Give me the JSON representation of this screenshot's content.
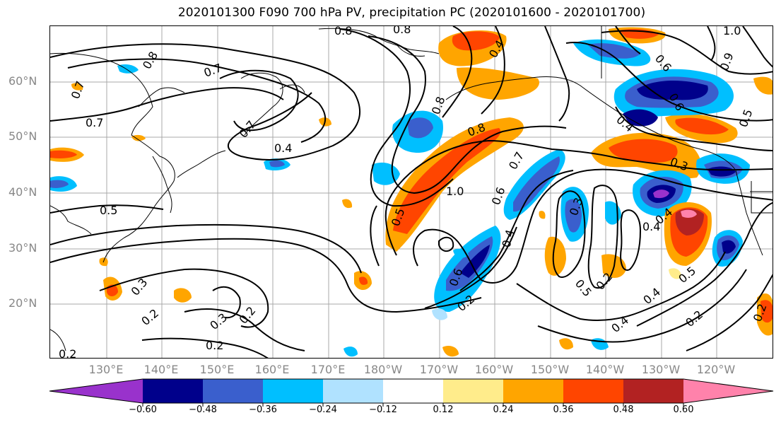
{
  "title": "2020101300 F090 700 hPa PV, precipitation PC (2020101600 - 2020101700)",
  "lat_labels": [
    "60°N",
    "50°N",
    "40°N",
    "30°N",
    "20°N"
  ],
  "lon_labels": [
    "130°E",
    "140°E",
    "150°E",
    "160°E",
    "170°E",
    "180°W",
    "170°W",
    "160°W",
    "150°W",
    "140°W",
    "130°W",
    "120°W"
  ],
  "colorbar": {
    "ticks": [
      "−0.60",
      "−0.48",
      "−0.36",
      "−0.24",
      "−0.12",
      "0.12",
      "0.24",
      "0.36",
      "0.48",
      "0.60"
    ],
    "colors": [
      "#9932cc",
      "#00008b",
      "#3a5fcd",
      "#00bfff",
      "#b0e2ff",
      "#ffffff",
      "#ffec8b",
      "#ffa500",
      "#ff4500",
      "#b22222",
      "#ff82ab"
    ],
    "extend": "both"
  },
  "contour_labels": [
    "0.8",
    "0.8",
    "1.0",
    "0.7",
    "0.4",
    "0.8",
    "0.6",
    "0.9",
    "0.8",
    "0.4",
    "0.7",
    "0.4",
    "0.8",
    "0.6",
    "0.7",
    "0.7",
    "0.3",
    "0.5",
    "0.5",
    "0.7",
    "1.0",
    "0.6",
    "0.3",
    "0.4",
    "0.5",
    "0.6",
    "0.2",
    "0.4",
    "0.3",
    "0.5",
    "0.2",
    "0.3",
    "0.2",
    "0.2",
    "0.2",
    "0.2",
    "0.4",
    "0.4",
    "0.5",
    "0.2",
    "0.4",
    "0.2"
  ]
}
